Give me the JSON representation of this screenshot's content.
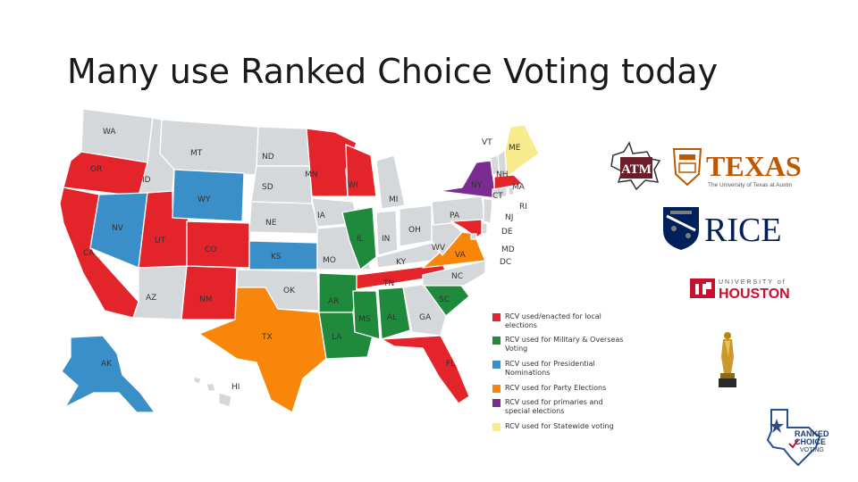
{
  "slide": {
    "title": "Many use Ranked Choice Voting today"
  },
  "colors": {
    "local": "#e3242b",
    "military": "#1f8a3b",
    "presidential": "#3b8fc9",
    "party": "#f7860a",
    "primaries": "#7b2b91",
    "statewide": "#f7eb8e",
    "none": "#d5d8db"
  },
  "map": {
    "states": [
      {
        "abbr": "WA",
        "category": "none"
      },
      {
        "abbr": "OR",
        "category": "local"
      },
      {
        "abbr": "CA",
        "category": "local"
      },
      {
        "abbr": "ID",
        "category": "none"
      },
      {
        "abbr": "NV",
        "category": "presidential"
      },
      {
        "abbr": "UT",
        "category": "local"
      },
      {
        "abbr": "AZ",
        "category": "none"
      },
      {
        "abbr": "MT",
        "category": "none"
      },
      {
        "abbr": "WY",
        "category": "presidential"
      },
      {
        "abbr": "CO",
        "category": "local"
      },
      {
        "abbr": "NM",
        "category": "local"
      },
      {
        "abbr": "ND",
        "category": "none"
      },
      {
        "abbr": "SD",
        "category": "none"
      },
      {
        "abbr": "NE",
        "category": "none"
      },
      {
        "abbr": "KS",
        "category": "presidential"
      },
      {
        "abbr": "OK",
        "category": "none"
      },
      {
        "abbr": "TX",
        "category": "party"
      },
      {
        "abbr": "MN",
        "category": "local"
      },
      {
        "abbr": "IA",
        "category": "none"
      },
      {
        "abbr": "MO",
        "category": "none"
      },
      {
        "abbr": "AR",
        "category": "military"
      },
      {
        "abbr": "LA",
        "category": "military"
      },
      {
        "abbr": "WI",
        "category": "local"
      },
      {
        "abbr": "IL",
        "category": "military"
      },
      {
        "abbr": "MI",
        "category": "none"
      },
      {
        "abbr": "IN",
        "category": "none"
      },
      {
        "abbr": "OH",
        "category": "none"
      },
      {
        "abbr": "KY",
        "category": "none"
      },
      {
        "abbr": "TN",
        "category": "local"
      },
      {
        "abbr": "MS",
        "category": "military"
      },
      {
        "abbr": "AL",
        "category": "military"
      },
      {
        "abbr": "GA",
        "category": "none"
      },
      {
        "abbr": "FL",
        "category": "local"
      },
      {
        "abbr": "SC",
        "category": "military"
      },
      {
        "abbr": "NC",
        "category": "none"
      },
      {
        "abbr": "VA",
        "category": "party"
      },
      {
        "abbr": "WV",
        "category": "none"
      },
      {
        "abbr": "PA",
        "category": "none"
      },
      {
        "abbr": "NY",
        "category": "primaries"
      },
      {
        "abbr": "VT",
        "category": "none"
      },
      {
        "abbr": "NH",
        "category": "none"
      },
      {
        "abbr": "ME",
        "category": "statewide"
      },
      {
        "abbr": "MA",
        "category": "local"
      },
      {
        "abbr": "RI",
        "category": "none"
      },
      {
        "abbr": "CT",
        "category": "none"
      },
      {
        "abbr": "NJ",
        "category": "none"
      },
      {
        "abbr": "DE",
        "category": "none"
      },
      {
        "abbr": "MD",
        "category": "local"
      },
      {
        "abbr": "DC",
        "category": "none"
      },
      {
        "abbr": "AK",
        "category": "presidential"
      },
      {
        "abbr": "HI",
        "category": "none"
      }
    ]
  },
  "legend": {
    "items": [
      {
        "label": "RCV used/enacted for local elections",
        "category": "local"
      },
      {
        "label": "RCV used for Military & Overseas Voting",
        "category": "military"
      },
      {
        "label": "RCV used for Presidential Nominations",
        "category": "presidential"
      },
      {
        "label": "RCV used for Party Elections",
        "category": "party"
      },
      {
        "label": "RCV used for primaries and special elections",
        "category": "primaries"
      },
      {
        "label": "RCV used for Statewide voting",
        "category": "statewide"
      }
    ]
  },
  "logos": {
    "tamu": {
      "text": "ATM"
    },
    "texas": {
      "text": "TEXAS",
      "subtitle": "The University of Texas at Austin"
    },
    "rice": {
      "text": "RICE"
    },
    "houston": {
      "top": "UNIVERSITY of",
      "text": "HOUSTON"
    },
    "rcv": {
      "line1": "RANKED",
      "line2": "CHOICE",
      "line3": "VOTING"
    }
  }
}
